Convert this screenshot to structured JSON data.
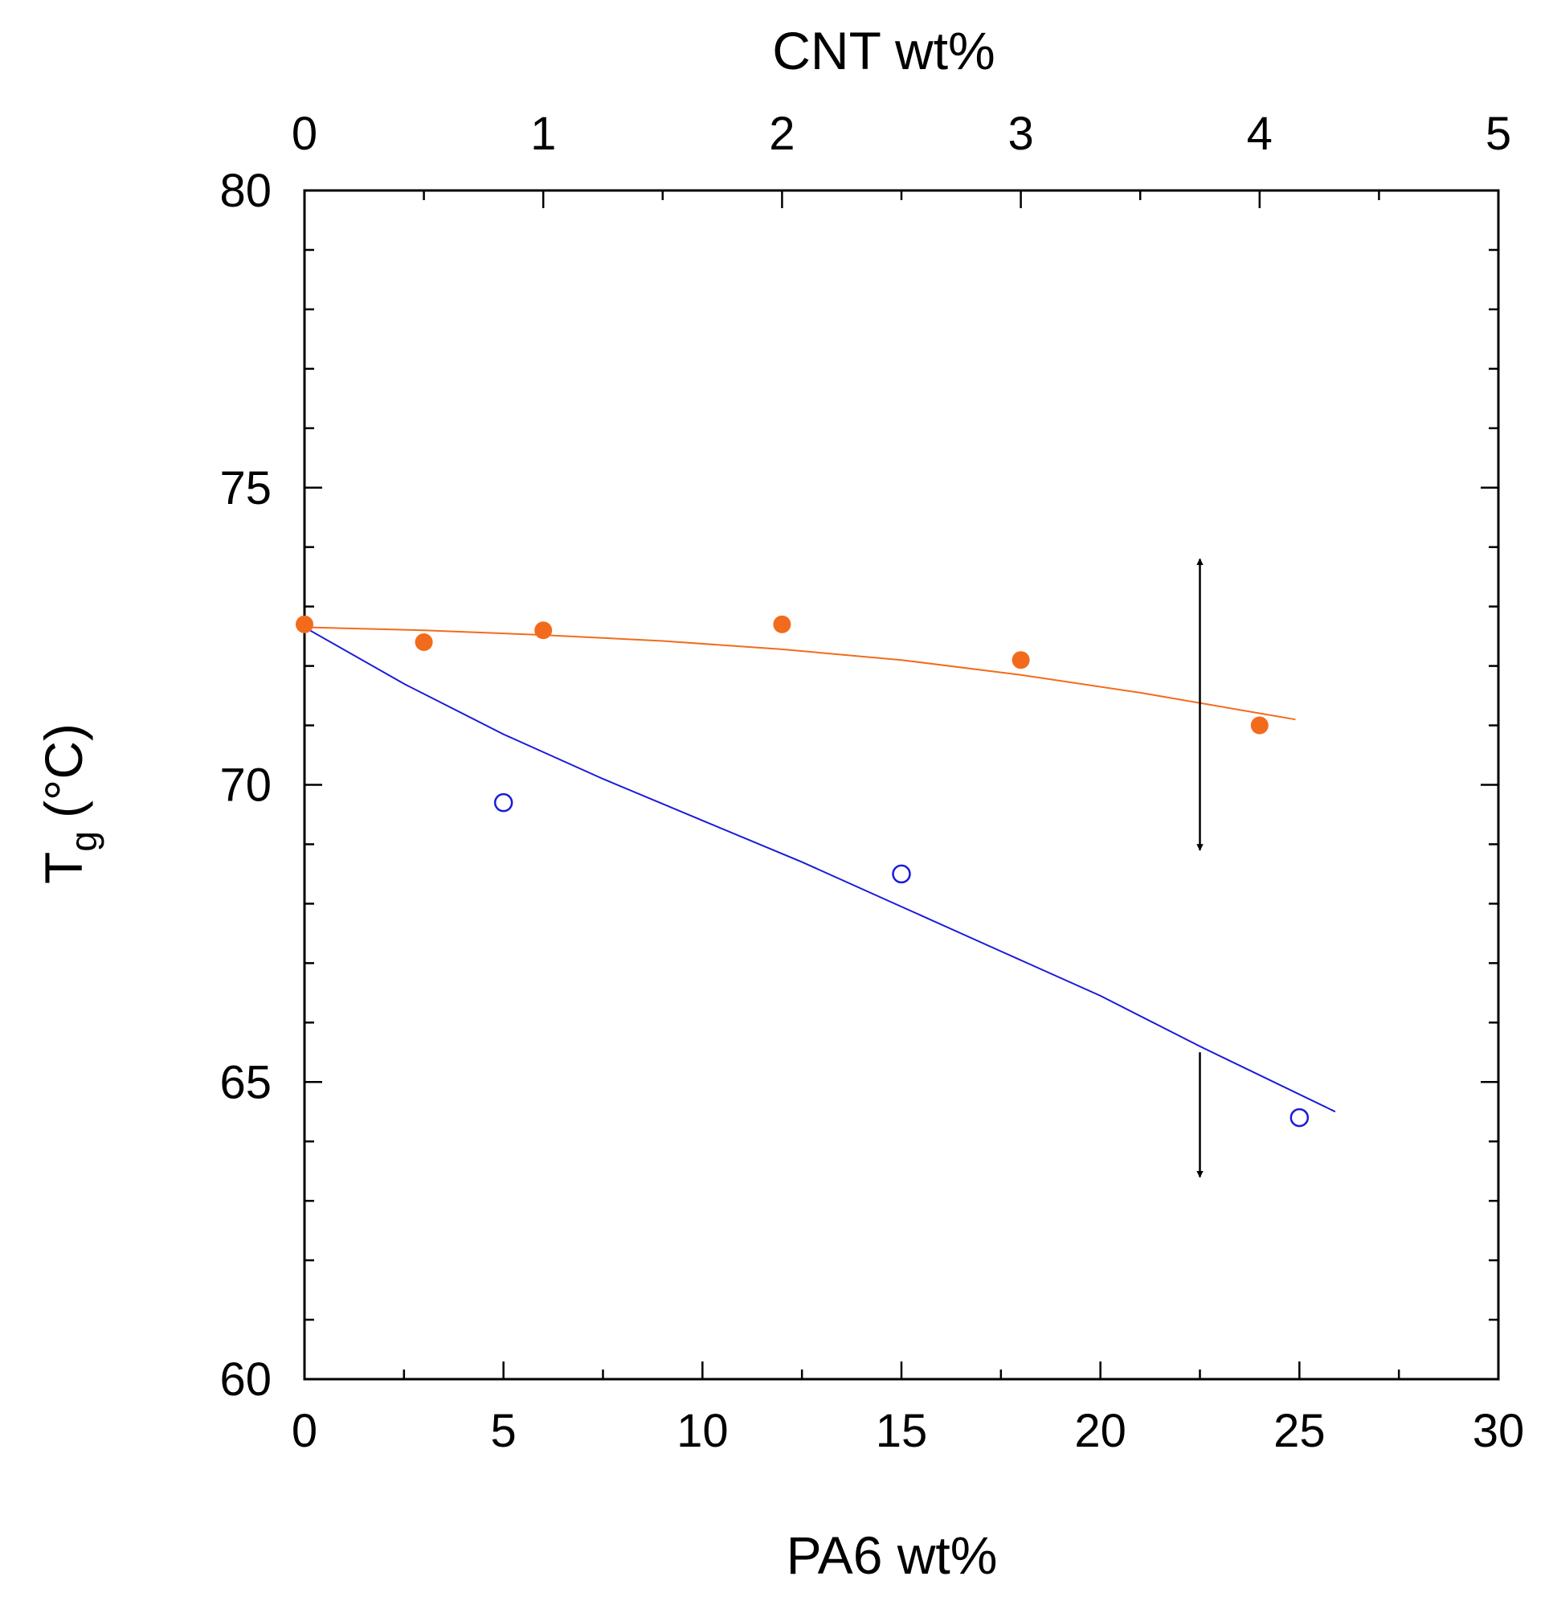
{
  "chart_data": {
    "type": "scatter",
    "xlabel": "PA6 wt%",
    "x2label": "CNT wt%",
    "ylabel_main": "T",
    "ylabel_sub": "g",
    "ylabel_unit": "(°C)",
    "xlim": [
      0,
      30
    ],
    "x2lim": [
      0,
      5
    ],
    "ylim": [
      60,
      80
    ],
    "xticks": [
      0,
      5,
      10,
      15,
      20,
      25,
      30
    ],
    "x2ticks": [
      0,
      1,
      2,
      3,
      4,
      5
    ],
    "yticks": [
      60,
      65,
      70,
      75,
      80
    ],
    "grid": false,
    "series": [
      {
        "axis": "top",
        "marker": "filled-circle",
        "color": "#f26b1d",
        "points": [
          {
            "x": 0,
            "y": 72.7
          },
          {
            "x": 0.5,
            "y": 72.4
          },
          {
            "x": 1,
            "y": 72.6
          },
          {
            "x": 2,
            "y": 72.7
          },
          {
            "x": 3,
            "y": 72.1
          },
          {
            "x": 4,
            "y": 71.0
          }
        ],
        "fit": [
          {
            "x": 0,
            "y": 72.65
          },
          {
            "x": 0.5,
            "y": 72.6
          },
          {
            "x": 1,
            "y": 72.52
          },
          {
            "x": 1.5,
            "y": 72.42
          },
          {
            "x": 2,
            "y": 72.28
          },
          {
            "x": 2.5,
            "y": 72.1
          },
          {
            "x": 3,
            "y": 71.85
          },
          {
            "x": 3.5,
            "y": 71.55
          },
          {
            "x": 4.15,
            "y": 71.1
          }
        ]
      },
      {
        "axis": "bottom",
        "marker": "open-circle",
        "color": "#1a1adb",
        "points": [
          {
            "x": 5,
            "y": 69.7
          },
          {
            "x": 15,
            "y": 68.5
          },
          {
            "x": 25,
            "y": 64.4
          }
        ],
        "fit": [
          {
            "x": 0,
            "y": 72.65
          },
          {
            "x": 2.5,
            "y": 71.7
          },
          {
            "x": 5,
            "y": 70.85
          },
          {
            "x": 7.5,
            "y": 70.1
          },
          {
            "x": 10,
            "y": 69.4
          },
          {
            "x": 12.5,
            "y": 68.7
          },
          {
            "x": 15,
            "y": 67.95
          },
          {
            "x": 17.5,
            "y": 67.2
          },
          {
            "x": 20,
            "y": 66.45
          },
          {
            "x": 22.5,
            "y": 65.6
          },
          {
            "x": 25.9,
            "y": 64.5
          }
        ]
      }
    ],
    "annotations": [
      {
        "type": "double-arrow",
        "x": 22.5,
        "y_from": 73.8,
        "y_to": 68.9
      },
      {
        "type": "arrow",
        "x": 22.5,
        "y_from": 65.5,
        "y_to": 63.4
      }
    ]
  }
}
